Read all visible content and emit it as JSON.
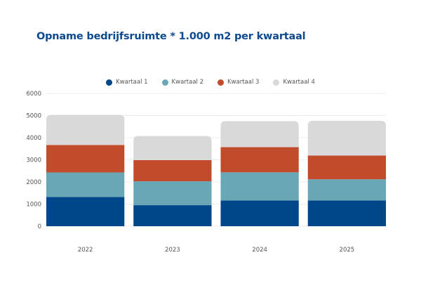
{
  "title": "Opname bedrijfsruimte * 1.000 m2 per kwartaal",
  "chart_data": {
    "type": "bar",
    "stacked": true,
    "title": "Opname bedrijfsruimte * 1.000 m2 per kwartaal",
    "xlabel": "",
    "ylabel": "",
    "categories": [
      "2022",
      "2023",
      "2024",
      "2025"
    ],
    "series": [
      {
        "name": "Kwartaal 1",
        "color": "#00468b",
        "values": [
          1320,
          950,
          1165,
          1165
        ]
      },
      {
        "name": "Kwartaal 2",
        "color": "#6aa7b6",
        "values": [
          1110,
          1080,
          1270,
          955
        ]
      },
      {
        "name": "Kwartaal 3",
        "color": "#c14b2b",
        "values": [
          1240,
          955,
          1135,
          1075
        ]
      },
      {
        "name": "Kwartaal 4",
        "color": "#d9d9d9",
        "values": [
          1360,
          1090,
          1175,
          1565
        ]
      }
    ],
    "ylim": [
      0,
      6000
    ],
    "yticks": [
      0,
      1000,
      2000,
      3000,
      4000,
      5000,
      6000
    ],
    "grid": true,
    "legend": "top-center"
  }
}
